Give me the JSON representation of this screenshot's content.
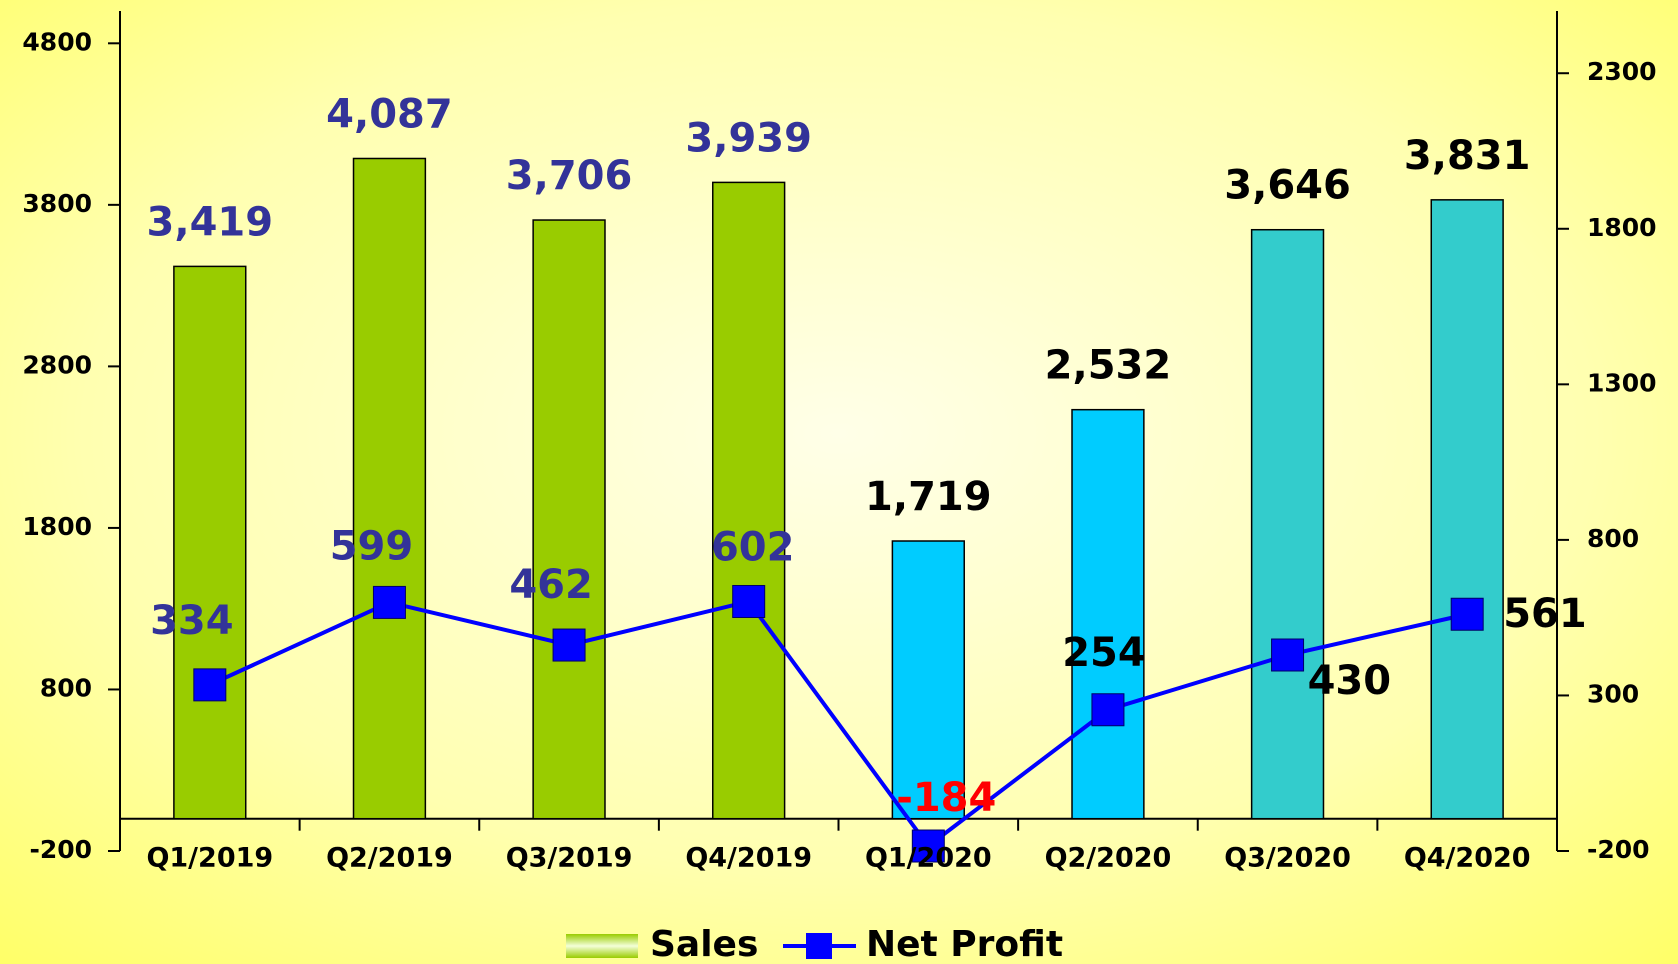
{
  "chart_data": {
    "type": "bar-line",
    "categories": [
      "Q1/2019",
      "Q2/2019",
      "Q3/2019",
      "Q4/2019",
      "Q1/2020",
      "Q2/2020",
      "Q3/2020",
      "Q4/2020"
    ],
    "series": [
      {
        "name": "Sales",
        "type": "bar",
        "axis": "y",
        "colors": [
          "#99cc00",
          "#99cc00",
          "#99cc00",
          "#99cc00",
          "#00ccff",
          "#00ccff",
          "#33cccc",
          "#33cccc"
        ],
        "label_colors": [
          "#333399",
          "#333399",
          "#333399",
          "#333399",
          "#000000",
          "#000000",
          "#000000",
          "#000000"
        ],
        "values": [
          3419,
          4087,
          3706,
          3939,
          1719,
          2532,
          3646,
          3831
        ],
        "value_labels": [
          "3,419",
          "4,087",
          "3,706",
          "3,939",
          "1,719",
          "2,532",
          "3,646",
          "3,831"
        ]
      },
      {
        "name": "Net Profit",
        "type": "line",
        "axis": "y2",
        "color": "#0000ff",
        "label_colors": [
          "#333399",
          "#333399",
          "#333399",
          "#333399",
          "#ff0000",
          "#000000",
          "#000000",
          "#000000"
        ],
        "values": [
          334,
          599,
          462,
          602,
          -184,
          254,
          430,
          561
        ]
      }
    ],
    "ylim": [
      -200,
      5000
    ],
    "yticks": [
      -200,
      800,
      1800,
      2800,
      3800,
      4800
    ],
    "y2lim": [
      -200,
      2500
    ],
    "y2ticks": [
      -200,
      300,
      800,
      1300,
      1800,
      2300
    ],
    "legend": "bottom"
  }
}
